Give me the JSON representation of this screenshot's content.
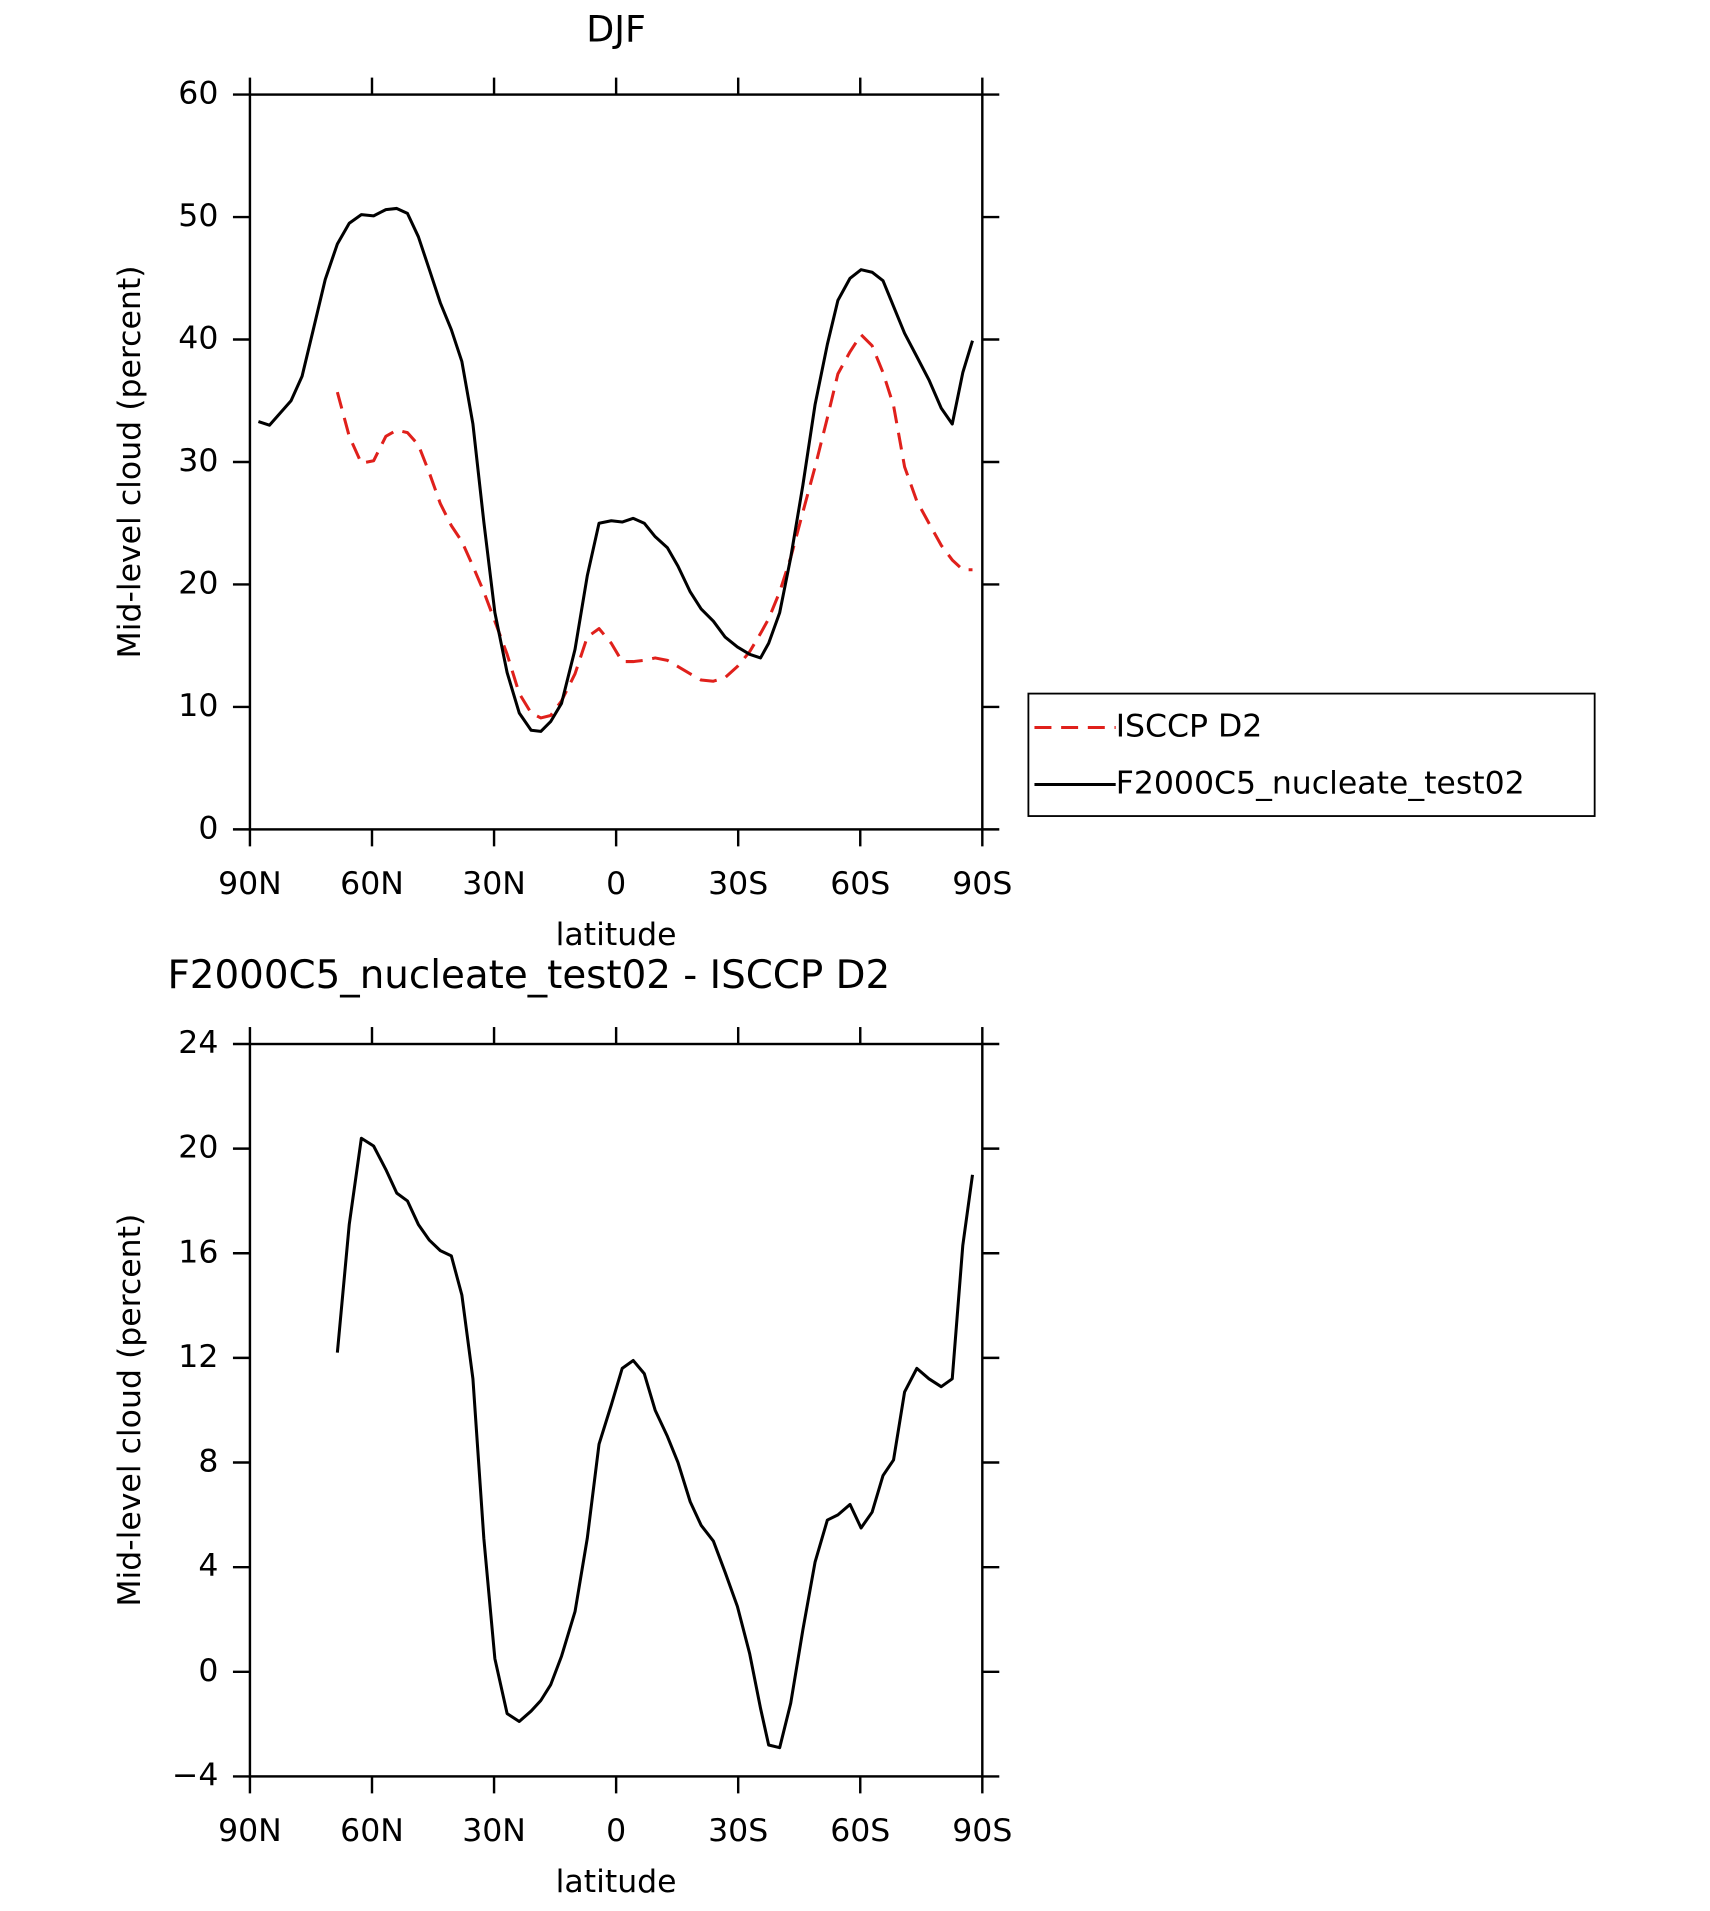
{
  "chart_data": [
    {
      "type": "line",
      "title": "DJF",
      "xlabel": "latitude",
      "ylabel": "Mid-level cloud (percent)",
      "x": [
        87.9,
        85.2,
        79.9,
        77.2,
        74.5,
        71.5,
        68.5,
        65.6,
        62.6,
        59.6,
        56.6,
        53.9,
        51.3,
        48.6,
        45.9,
        43.2,
        40.5,
        37.9,
        35.2,
        32.5,
        29.8,
        26.8,
        23.8,
        20.9,
        18.5,
        16.1,
        13.4,
        10.1,
        7.1,
        4.2,
        1.2,
        -1.5,
        -4.2,
        -6.9,
        -9.6,
        -12.6,
        -15.2,
        -18.2,
        -20.9,
        -23.9,
        -26.8,
        -29.8,
        -32.8,
        -35.5,
        -37.5,
        -40.2,
        -42.9,
        -45.9,
        -48.9,
        -51.9,
        -54.5,
        -57.5,
        -60.2,
        -62.9,
        -65.6,
        -68.2,
        -70.9,
        -73.9,
        -76.9,
        -79.9,
        -82.6,
        -85.2,
        -87.6
      ],
      "xlim": [
        90,
        -90
      ],
      "xticks": [
        {
          "value": 90,
          "label": "90N"
        },
        {
          "value": 60,
          "label": "60N"
        },
        {
          "value": 30,
          "label": "30N"
        },
        0,
        {
          "value": -30,
          "label": "30S"
        },
        {
          "value": -60,
          "label": "60S"
        },
        {
          "value": -90,
          "label": "90S"
        }
      ],
      "ylim": [
        0,
        60
      ],
      "yticks": [
        0,
        10,
        20,
        30,
        40,
        50,
        60
      ],
      "legend": "right",
      "series": [
        {
          "name": "ISCCP D2",
          "color": "#e0201b",
          "dashed": true,
          "values": [
            null,
            null,
            null,
            null,
            null,
            null,
            35.7,
            32.1,
            29.9,
            30.1,
            32.1,
            32.6,
            32.4,
            31.4,
            29.1,
            26.6,
            24.8,
            23.5,
            21.5,
            19.4,
            17.0,
            14.3,
            11.1,
            9.5,
            9.1,
            9.3,
            10.5,
            12.7,
            15.7,
            16.4,
            15.2,
            13.7,
            13.7,
            13.8,
            14.0,
            13.8,
            13.3,
            12.7,
            12.2,
            12.1,
            12.4,
            13.3,
            14.5,
            16.0,
            17.2,
            19.4,
            22.2,
            25.9,
            29.6,
            33.6,
            37.2,
            39.0,
            40.4,
            39.5,
            37.3,
            34.6,
            29.6,
            26.8,
            25.0,
            23.2,
            22.0,
            21.2,
            21.2
          ]
        },
        {
          "name": "F2000C5_nucleate_test02",
          "color": "#000000",
          "dashed": false,
          "values": [
            33.3,
            33.0,
            35.0,
            37.0,
            40.7,
            44.9,
            47.8,
            49.5,
            50.2,
            50.1,
            50.6,
            50.7,
            50.3,
            48.4,
            45.7,
            43.0,
            40.8,
            38.2,
            33.1,
            25.1,
            17.7,
            12.8,
            9.5,
            8.1,
            8.0,
            8.8,
            10.3,
            14.7,
            20.7,
            25.0,
            25.2,
            25.1,
            25.4,
            25.0,
            23.9,
            23.0,
            21.5,
            19.4,
            18.0,
            17.0,
            15.7,
            14.9,
            14.3,
            14.0,
            15.2,
            17.7,
            22.2,
            28.1,
            34.7,
            39.6,
            43.2,
            45.0,
            45.7,
            45.5,
            44.8,
            42.7,
            40.5,
            38.6,
            36.7,
            34.4,
            33.1,
            37.3,
            39.9
          ]
        }
      ]
    },
    {
      "type": "line",
      "title": "F2000C5_nucleate_test02 - ISCCP D2",
      "xlabel": "latitude",
      "ylabel": "Mid-level cloud (percent)",
      "x": [
        87.9,
        85.2,
        79.9,
        77.2,
        74.5,
        71.5,
        68.5,
        65.6,
        62.6,
        59.6,
        56.6,
        53.9,
        51.3,
        48.6,
        45.9,
        43.2,
        40.5,
        37.9,
        35.2,
        32.5,
        29.8,
        26.8,
        23.8,
        20.9,
        18.5,
        16.1,
        13.4,
        10.1,
        7.1,
        4.2,
        1.2,
        -1.5,
        -4.2,
        -6.9,
        -9.6,
        -12.6,
        -15.2,
        -18.2,
        -20.9,
        -23.9,
        -26.8,
        -29.8,
        -32.8,
        -35.5,
        -37.5,
        -40.2,
        -42.9,
        -45.9,
        -48.9,
        -51.9,
        -54.5,
        -57.5,
        -60.2,
        -62.9,
        -65.6,
        -68.2,
        -70.9,
        -73.9,
        -76.9,
        -79.9,
        -82.6,
        -85.2,
        -87.6
      ],
      "xlim": [
        90,
        -90
      ],
      "xticks": [
        {
          "value": 90,
          "label": "90N"
        },
        {
          "value": 60,
          "label": "60N"
        },
        {
          "value": 30,
          "label": "30N"
        },
        0,
        {
          "value": -30,
          "label": "30S"
        },
        {
          "value": -60,
          "label": "60S"
        },
        {
          "value": -90,
          "label": "90S"
        }
      ],
      "ylim": [
        -4,
        24
      ],
      "yticks": [
        {
          "value": -4,
          "label": "−4"
        },
        0,
        4,
        8,
        12,
        16,
        20,
        24
      ],
      "series": [
        {
          "color": "#000000",
          "dashed": false,
          "values": [
            null,
            null,
            null,
            null,
            null,
            null,
            12.2,
            17.1,
            20.4,
            20.1,
            19.2,
            18.3,
            18.0,
            17.1,
            16.5,
            16.1,
            15.9,
            14.4,
            11.2,
            5.1,
            0.5,
            -1.6,
            -1.9,
            -1.5,
            -1.1,
            -0.5,
            0.6,
            2.3,
            5.1,
            8.7,
            10.2,
            11.6,
            11.9,
            11.4,
            10.0,
            9.0,
            8.0,
            6.5,
            5.6,
            5.0,
            3.8,
            2.5,
            0.7,
            -1.4,
            -2.8,
            -2.9,
            -1.2,
            1.6,
            4.2,
            5.8,
            6.0,
            6.4,
            5.5,
            6.1,
            7.5,
            8.1,
            10.7,
            11.6,
            11.2,
            10.9,
            11.2,
            16.3,
            19.0
          ]
        }
      ]
    }
  ]
}
